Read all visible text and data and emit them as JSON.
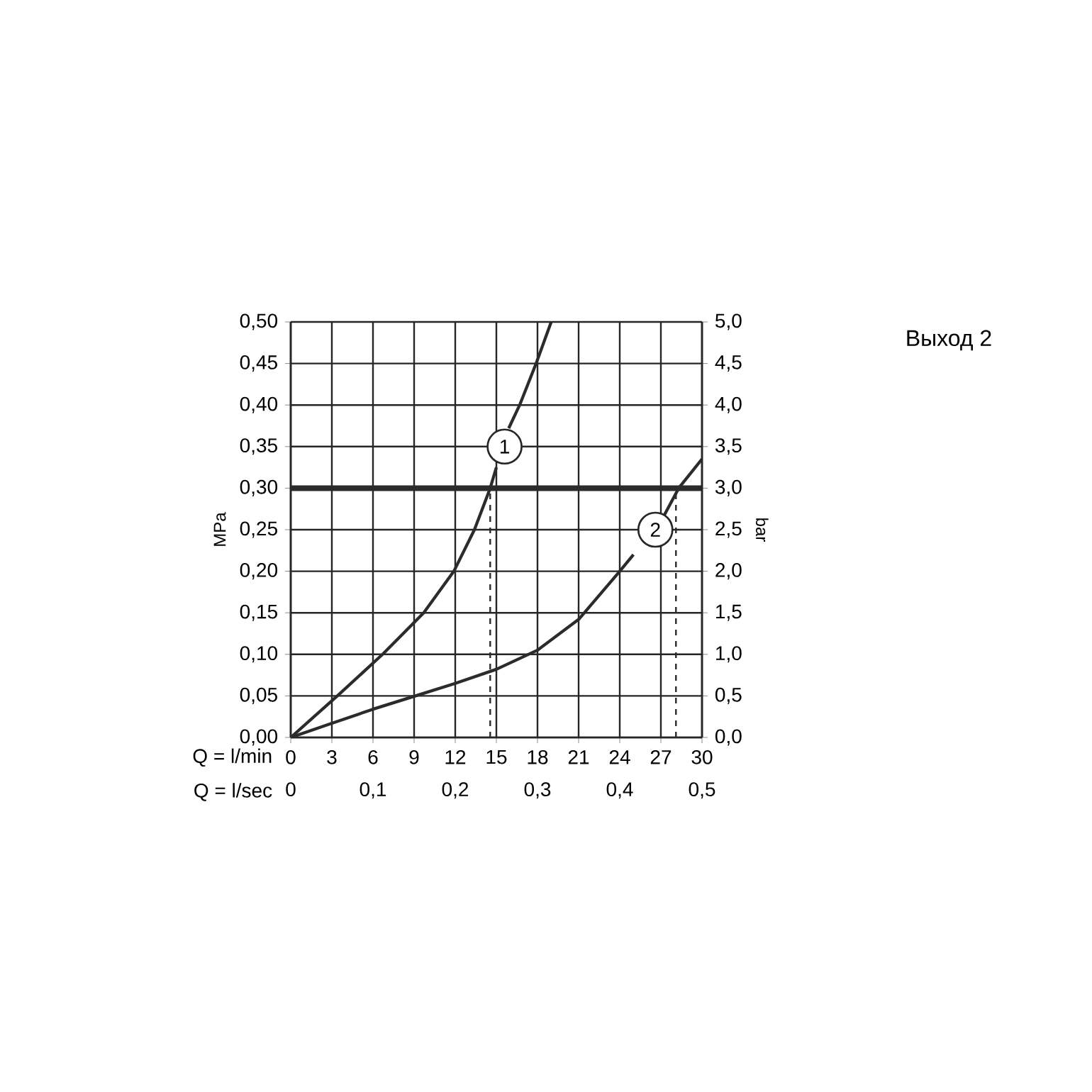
{
  "chart_data": {
    "type": "line",
    "title": "Выход 2",
    "xlabel": "Q = l/min",
    "ylabel": "MPa",
    "y2label": "bar",
    "x2label": "Q = l/sec",
    "xlim": [
      0,
      30
    ],
    "xticks": [
      0,
      3,
      6,
      9,
      12,
      15,
      18,
      21,
      24,
      27,
      30
    ],
    "x2lim": [
      0,
      0.5
    ],
    "x2ticks": [
      0,
      {
        "value": 0.1,
        "label": "0,1"
      },
      {
        "value": 0.2,
        "label": "0,2"
      },
      {
        "value": 0.3,
        "label": "0,3"
      },
      {
        "value": 0.4,
        "label": "0,4"
      },
      {
        "value": 0.5,
        "label": "0,5"
      }
    ],
    "ylim": [
      0,
      0.5
    ],
    "yticks": [
      {
        "value": 0,
        "label": "0,00"
      },
      {
        "value": 0.05,
        "label": "0,05"
      },
      {
        "value": 0.1,
        "label": "0,10"
      },
      {
        "value": 0.15,
        "label": "0,15"
      },
      {
        "value": 0.2,
        "label": "0,20"
      },
      {
        "value": 0.25,
        "label": "0,25"
      },
      {
        "value": 0.3,
        "label": "0,30"
      },
      {
        "value": 0.35,
        "label": "0,35"
      },
      {
        "value": 0.4,
        "label": "0,40"
      },
      {
        "value": 0.45,
        "label": "0,45"
      },
      {
        "value": 0.5,
        "label": "0,50"
      }
    ],
    "y2lim": [
      0,
      5
    ],
    "y2ticks": [
      {
        "value": 0,
        "label": "0,0"
      },
      {
        "value": 0.5,
        "label": "0,5"
      },
      {
        "value": 1,
        "label": "1,0"
      },
      {
        "value": 1.5,
        "label": "1,5"
      },
      {
        "value": 2,
        "label": "2,0"
      },
      {
        "value": 2.5,
        "label": "2,5"
      },
      {
        "value": 3,
        "label": "3,0"
      },
      {
        "value": 3.5,
        "label": "3,5"
      },
      {
        "value": 4,
        "label": "4,0"
      },
      {
        "value": 4.5,
        "label": "4,5"
      },
      {
        "value": 5,
        "label": "5,0"
      }
    ],
    "grid": true,
    "marker": "none",
    "line_style": "solid",
    "series": [
      {
        "color": "#2b2b2b",
        "x": [
          0,
          3.4,
          6.7,
          9.7,
          11.9,
          13.4,
          14.55,
          15.0,
          15.5,
          15.9,
          16.7,
          17.9,
          19.0
        ],
        "values": [
          0,
          0.05,
          0.1,
          0.15,
          0.2,
          0.25,
          0.3,
          0.325,
          null,
          0.372,
          0.4,
          0.45,
          0.5
        ]
      },
      {
        "color": "#2b2b2b",
        "x": [
          0,
          3,
          6,
          9.1,
          12,
          15,
          18,
          21,
          24,
          25.0,
          26.0,
          27.2,
          28.3,
          30
        ],
        "values": [
          0,
          0.017,
          0.034,
          0.05,
          0.065,
          0.082,
          0.105,
          0.142,
          0.2,
          0.22,
          null,
          0.266,
          0.3,
          0.335
        ]
      }
    ],
    "ref_lines": [
      {
        "axis": "y",
        "value": 0.3,
        "color": "#2b2b2b",
        "line_style": "solid"
      },
      {
        "axis": "x",
        "value": 14.55,
        "color": "#2b2b2b",
        "line_style": "dashed"
      },
      {
        "axis": "x",
        "value": 28.1,
        "color": "#2b2b2b",
        "line_style": "dashed"
      }
    ],
    "annotations": [
      {
        "text": "1",
        "x": 15.6,
        "y": 0.35
      },
      {
        "text": "2",
        "x": 26.6,
        "y": 0.25
      }
    ]
  }
}
